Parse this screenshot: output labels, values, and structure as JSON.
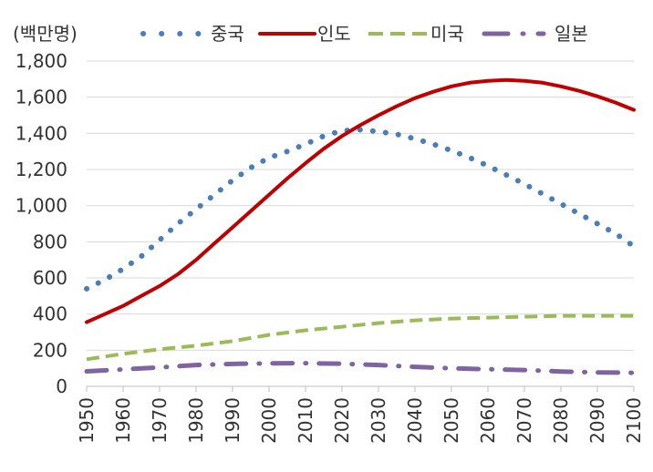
{
  "chart_data": {
    "type": "line",
    "unit_label": "(백만명)",
    "xlabel": "",
    "ylabel": "",
    "xlim": [
      1950,
      2100
    ],
    "ylim": [
      0,
      1800
    ],
    "y_ticks": [
      0,
      200,
      400,
      600,
      800,
      1000,
      1200,
      1400,
      1600,
      1800
    ],
    "y_tick_labels": [
      "0",
      "200",
      "400",
      "600",
      "800",
      "1,000",
      "1,200",
      "1,400",
      "1,600",
      "1,800"
    ],
    "x_ticks": [
      1950,
      1960,
      1970,
      1980,
      1990,
      2000,
      2010,
      2020,
      2030,
      2040,
      2050,
      2060,
      2070,
      2080,
      2090,
      2100
    ],
    "grid": "horizontal",
    "legend_position": "top",
    "series": [
      {
        "name": "중국",
        "color": "#4a7ebb",
        "style": "dotted",
        "x": [
          1950,
          1955,
          1960,
          1965,
          1970,
          1975,
          1980,
          1985,
          1990,
          1995,
          2000,
          2005,
          2010,
          2015,
          2020,
          2025,
          2030,
          2035,
          2040,
          2045,
          2050,
          2055,
          2060,
          2065,
          2070,
          2075,
          2080,
          2085,
          2090,
          2095,
          2100
        ],
        "y": [
          540,
          590,
          650,
          720,
          810,
          900,
          980,
          1060,
          1140,
          1210,
          1265,
          1300,
          1340,
          1385,
          1415,
          1420,
          1410,
          1395,
          1370,
          1340,
          1305,
          1265,
          1220,
          1170,
          1120,
          1065,
          1010,
          955,
          900,
          845,
          775
        ]
      },
      {
        "name": "인도",
        "color": "#c00000",
        "style": "solid",
        "x": [
          1950,
          1955,
          1960,
          1965,
          1970,
          1975,
          1980,
          1985,
          1990,
          1995,
          2000,
          2005,
          2010,
          2015,
          2020,
          2025,
          2030,
          2035,
          2040,
          2045,
          2050,
          2055,
          2060,
          2065,
          2070,
          2075,
          2080,
          2085,
          2090,
          2095,
          2100
        ],
        "y": [
          355,
          400,
          445,
          500,
          555,
          620,
          700,
          790,
          880,
          970,
          1060,
          1150,
          1235,
          1315,
          1385,
          1445,
          1500,
          1550,
          1595,
          1630,
          1660,
          1680,
          1690,
          1695,
          1690,
          1680,
          1660,
          1635,
          1605,
          1570,
          1530
        ]
      },
      {
        "name": "미국",
        "color": "#9bbb59",
        "style": "dashed",
        "x": [
          1950,
          1960,
          1970,
          1980,
          1990,
          2000,
          2010,
          2020,
          2030,
          2040,
          2050,
          2060,
          2070,
          2080,
          2090,
          2100
        ],
        "y": [
          150,
          180,
          205,
          225,
          250,
          285,
          310,
          330,
          350,
          365,
          375,
          380,
          385,
          390,
          390,
          390
        ]
      },
      {
        "name": "일본",
        "color": "#8064a2",
        "style": "dash-dot",
        "x": [
          1950,
          1960,
          1970,
          1980,
          1990,
          2000,
          2010,
          2020,
          2030,
          2040,
          2050,
          2060,
          2070,
          2080,
          2090,
          2100
        ],
        "y": [
          83,
          94,
          105,
          118,
          124,
          127,
          128,
          125,
          118,
          108,
          100,
          95,
          90,
          82,
          77,
          75
        ]
      }
    ]
  }
}
